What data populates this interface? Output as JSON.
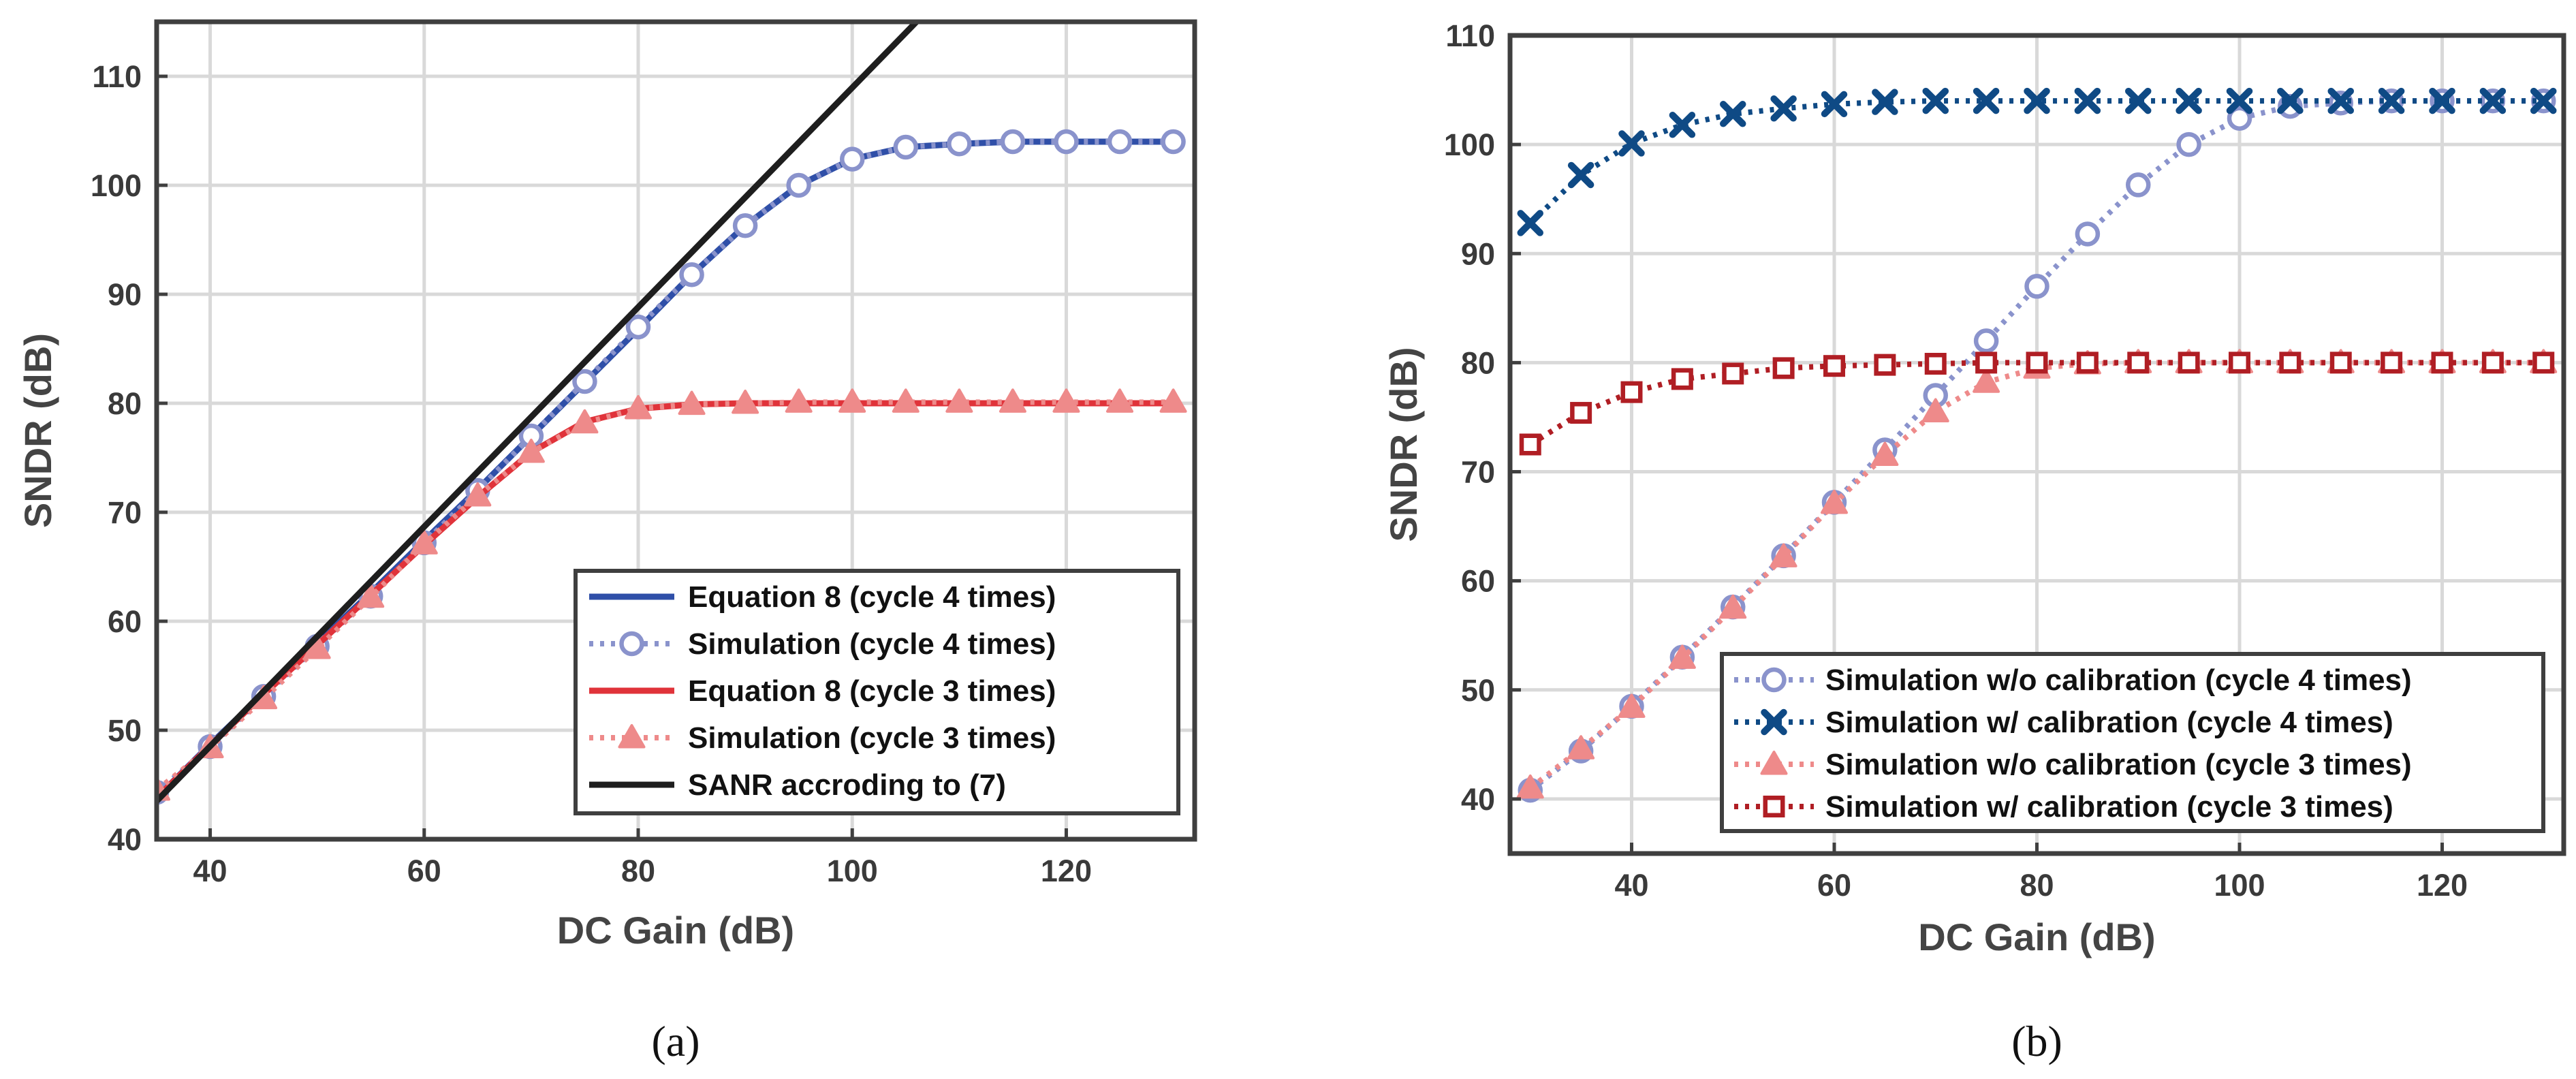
{
  "chart_data": [
    {
      "panel_caption": "(a)",
      "type": "line",
      "xlabel": "DC Gain (dB)",
      "ylabel": "SNDR (dB)",
      "xlim": [
        35,
        132
      ],
      "ylim": [
        40,
        115
      ],
      "xticks": [
        40,
        60,
        80,
        100,
        120
      ],
      "yticks": [
        40,
        50,
        60,
        70,
        80,
        90,
        100,
        110
      ],
      "grid": true,
      "legend_position": "bottom-right",
      "series": [
        {
          "name": "Equation 8 (cycle 4 times)",
          "color": "#2f4fa8",
          "style": "solid",
          "marker": "none",
          "x": [
            35,
            40,
            45,
            50,
            55,
            60,
            65,
            70,
            75,
            80,
            85,
            90,
            95,
            100,
            105,
            110,
            115,
            120,
            125,
            130
          ],
          "y": [
            43.8,
            48.7,
            53.4,
            58.0,
            62.6,
            67.4,
            72.1,
            77.0,
            81.9,
            86.8,
            91.8,
            96.3,
            100.0,
            102.4,
            103.5,
            103.8,
            104.0,
            104.0,
            104.0,
            104.0
          ]
        },
        {
          "name": "Simulation (cycle 4 times)",
          "color": "#8a93cc",
          "style": "dotted",
          "marker": "circle",
          "x": [
            35,
            40,
            45,
            50,
            55,
            60,
            65,
            70,
            75,
            80,
            85,
            90,
            95,
            100,
            105,
            110,
            115,
            120,
            125,
            130
          ],
          "y": [
            44.3,
            48.5,
            53.1,
            57.7,
            62.3,
            67.2,
            72.0,
            77.0,
            82.0,
            87.0,
            91.8,
            96.3,
            100.0,
            102.4,
            103.5,
            103.8,
            104.0,
            104.0,
            104.0,
            104.0
          ]
        },
        {
          "name": "Equation 8 (cycle 3 times)",
          "color": "#e0333a",
          "style": "solid",
          "marker": "none",
          "x": [
            35,
            40,
            45,
            50,
            55,
            60,
            65,
            70,
            75,
            80,
            85,
            90,
            95,
            100,
            105,
            110,
            115,
            120,
            125,
            130
          ],
          "y": [
            43.8,
            48.6,
            53.3,
            57.8,
            62.4,
            67.0,
            71.4,
            75.5,
            78.3,
            79.5,
            79.9,
            80.0,
            80.0,
            80.0,
            80.0,
            80.0,
            80.0,
            80.0,
            80.0,
            80.0
          ]
        },
        {
          "name": "Simulation (cycle 3 times)",
          "color": "#ee8a8a",
          "style": "dotted",
          "marker": "triangle",
          "x": [
            35,
            40,
            45,
            50,
            55,
            60,
            65,
            70,
            75,
            80,
            85,
            90,
            95,
            100,
            105,
            110,
            115,
            120,
            125,
            130
          ],
          "y": [
            44.5,
            48.4,
            52.9,
            57.5,
            62.2,
            67.1,
            71.5,
            75.5,
            78.2,
            79.5,
            79.9,
            80.0,
            80.1,
            80.1,
            80.1,
            80.1,
            80.1,
            80.1,
            80.1,
            80.1
          ]
        },
        {
          "name": "SANR accroding to (7)",
          "color": "#1e1e1e",
          "style": "solid",
          "marker": "none",
          "x": [
            35,
            106
          ],
          "y": [
            43.5,
            115
          ]
        }
      ]
    },
    {
      "panel_caption": "(b)",
      "type": "line",
      "xlabel": "DC Gain (dB)",
      "ylabel": "SNDR (dB)",
      "xlim": [
        28,
        132
      ],
      "ylim": [
        35,
        110
      ],
      "xticks": [
        40,
        60,
        80,
        100,
        120
      ],
      "yticks": [
        40,
        50,
        60,
        70,
        80,
        90,
        100,
        110
      ],
      "grid": true,
      "legend_position": "bottom-right",
      "series": [
        {
          "name": "Simulation w/o calibration (cycle 4 times)",
          "color": "#8a93cc",
          "style": "dotted",
          "marker": "circle",
          "x": [
            30,
            35,
            40,
            45,
            50,
            55,
            60,
            65,
            70,
            75,
            80,
            85,
            90,
            95,
            100,
            105,
            110,
            115,
            120,
            125,
            130
          ],
          "y": [
            40.8,
            44.4,
            48.5,
            53.0,
            57.6,
            62.3,
            67.2,
            72.0,
            77.0,
            82.0,
            87.0,
            91.8,
            96.3,
            100.0,
            102.4,
            103.5,
            103.8,
            104.0,
            104.0,
            104.0,
            104.0
          ]
        },
        {
          "name": "Simulation w/ calibration (cycle 4 times)",
          "color": "#0f4a85",
          "style": "dotted",
          "marker": "x",
          "x": [
            30,
            35,
            40,
            45,
            50,
            55,
            60,
            65,
            70,
            75,
            80,
            85,
            90,
            95,
            100,
            105,
            110,
            115,
            120,
            125,
            130
          ],
          "y": [
            92.8,
            97.2,
            100.1,
            101.8,
            102.8,
            103.3,
            103.7,
            103.9,
            104.0,
            104.0,
            104.0,
            104.0,
            104.0,
            104.0,
            104.0,
            104.0,
            104.0,
            104.0,
            104.0,
            104.0,
            104.0
          ]
        },
        {
          "name": "Simulation w/o calibration (cycle 3 times)",
          "color": "#ee8a8a",
          "style": "dotted",
          "marker": "triangle",
          "x": [
            30,
            35,
            40,
            45,
            50,
            55,
            60,
            65,
            70,
            75,
            80,
            85,
            90,
            95,
            100,
            105,
            110,
            115,
            120,
            125,
            130
          ],
          "y": [
            41.0,
            44.6,
            48.4,
            52.9,
            57.5,
            62.2,
            67.1,
            71.5,
            75.5,
            78.2,
            79.5,
            79.9,
            80.0,
            80.0,
            80.0,
            80.0,
            80.0,
            80.0,
            80.0,
            80.0,
            80.0
          ]
        },
        {
          "name": "Simulation w/ calibration (cycle 3 times)",
          "color": "#b01e24",
          "style": "dotted",
          "marker": "square",
          "x": [
            30,
            35,
            40,
            45,
            50,
            55,
            60,
            65,
            70,
            75,
            80,
            85,
            90,
            95,
            100,
            105,
            110,
            115,
            120,
            125,
            130
          ],
          "y": [
            72.5,
            75.4,
            77.3,
            78.5,
            79.0,
            79.5,
            79.7,
            79.8,
            79.9,
            80.0,
            80.0,
            80.0,
            80.0,
            80.0,
            80.0,
            80.0,
            80.0,
            80.0,
            80.0,
            80.0,
            80.0
          ]
        }
      ]
    }
  ]
}
